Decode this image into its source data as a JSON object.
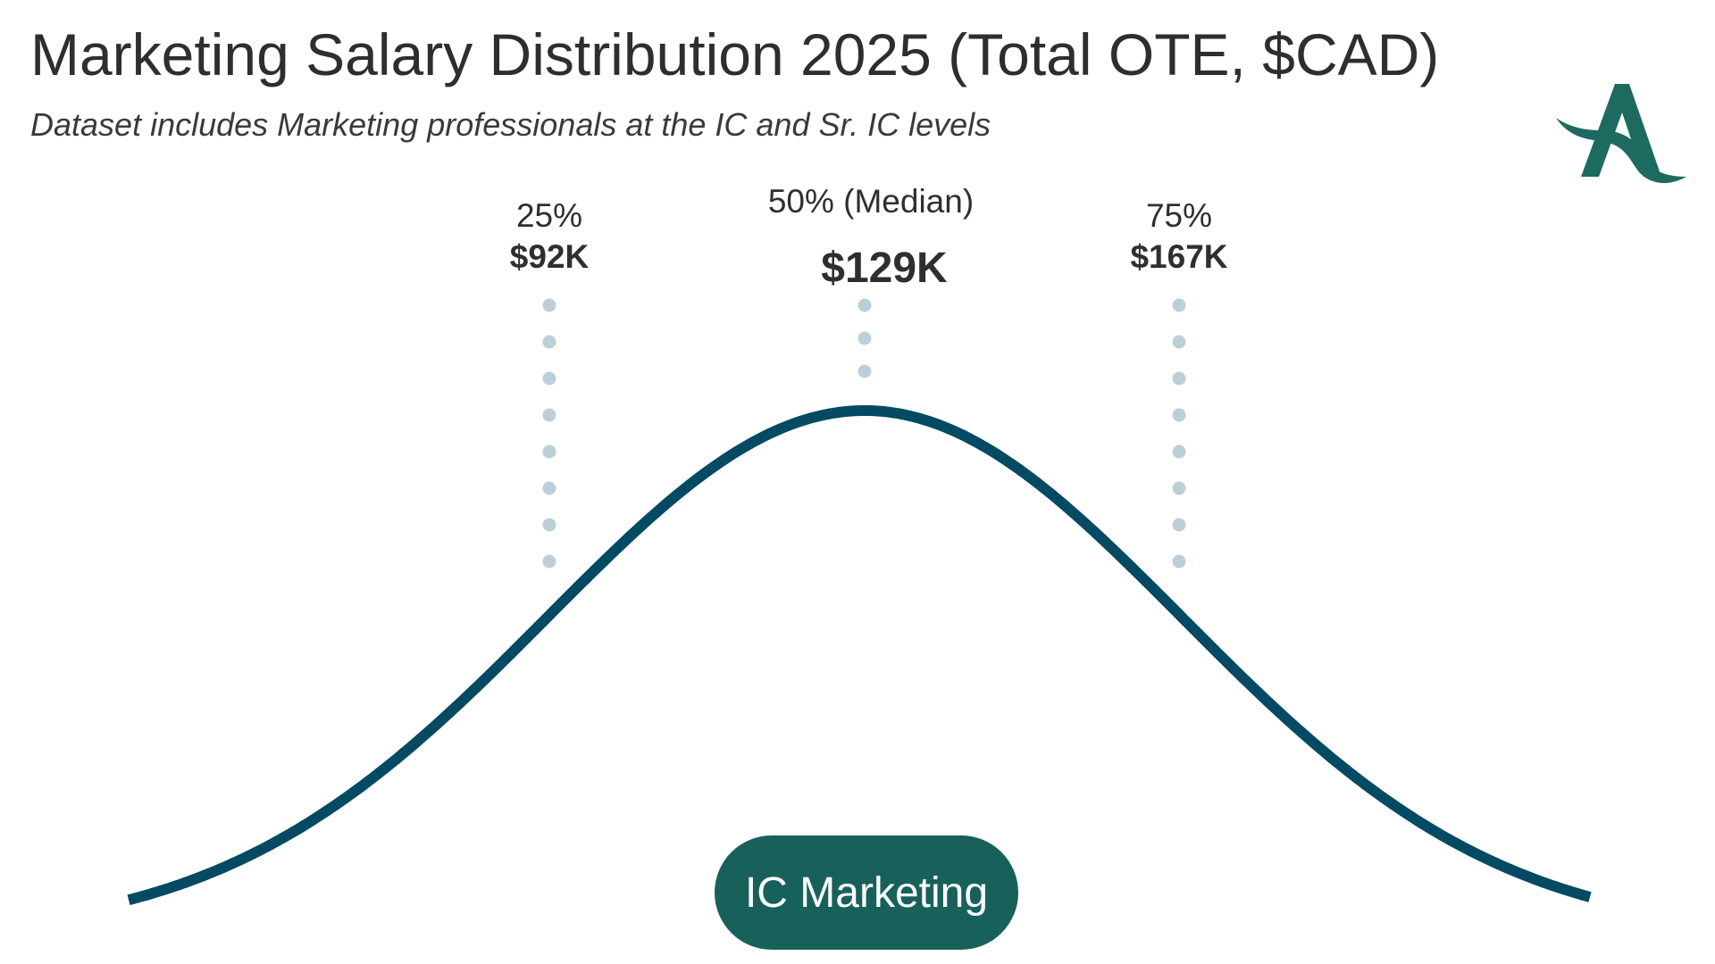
{
  "header": {
    "title": "Marketing Salary Distribution 2025 (Total OTE, $CAD)",
    "subtitle": "Dataset includes Marketing professionals at the IC and Sr. IC levels"
  },
  "logo": {
    "icon": "letter-a-logo-icon",
    "text": "A"
  },
  "colors": {
    "curve": "#054a63",
    "markers": "#bccfd8",
    "pill": "#17615a",
    "logo": "#1d6a60",
    "text": "#2e2e2e"
  },
  "chart_data": {
    "type": "line",
    "title": "Marketing Salary Distribution 2025 (Total OTE, $CAD)",
    "subtitle": "Dataset includes Marketing professionals at the IC and Sr. IC levels",
    "distribution": "normal",
    "unit": "$CAD",
    "percentiles": [
      {
        "label": "25%",
        "value_label": "$92K",
        "value": 92000
      },
      {
        "label": "50% (Median)",
        "value_label": "$129K",
        "value": 129000
      },
      {
        "label": "75%",
        "value_label": "$167K",
        "value": 167000
      }
    ],
    "series": [
      {
        "name": "IC Marketing"
      }
    ],
    "axes_visible": false,
    "grid": false
  }
}
